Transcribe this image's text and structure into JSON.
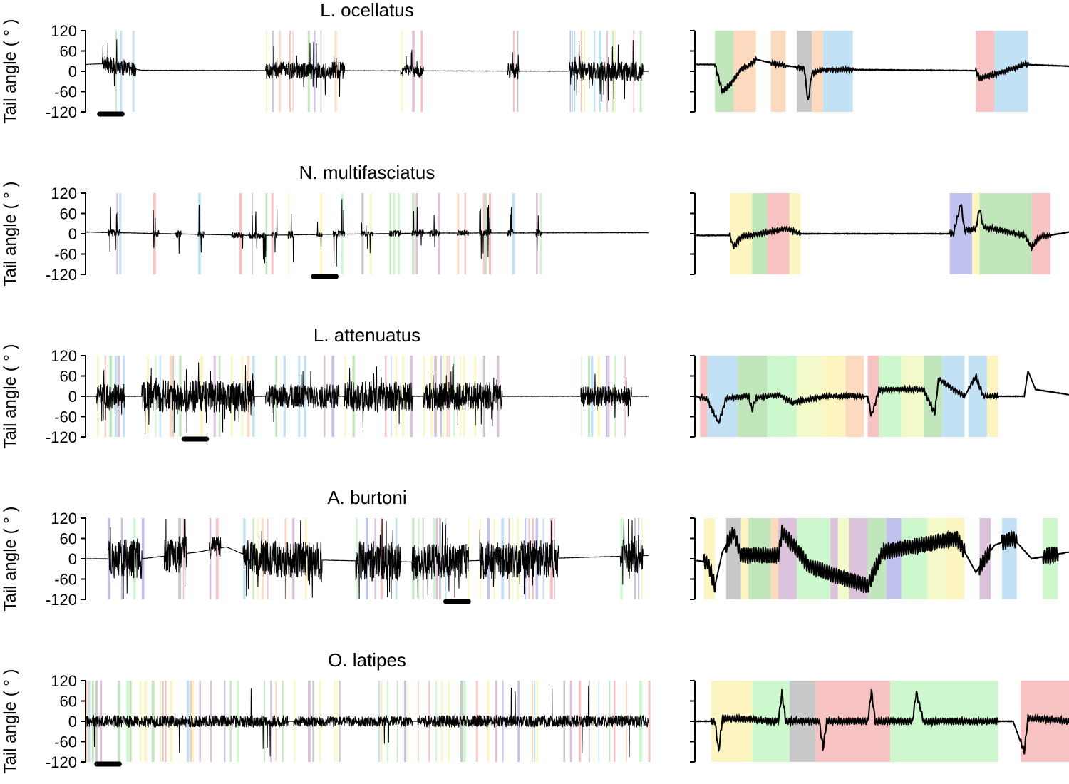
{
  "chart_data": [
    {
      "type": "line",
      "title": "L. ocellatus",
      "ylabel": "Tail angle ( ° )",
      "ylim": [
        -120,
        120
      ],
      "yticks": [
        120,
        60,
        0,
        -60,
        -120
      ],
      "ytick_labels": [
        "120",
        "60",
        "0",
        "-60",
        "-120"
      ],
      "overview": {
        "x_range": [
          0,
          100
        ],
        "pattern": "sparse",
        "baseline": [
          [
            0,
            20
          ],
          [
            3,
            22
          ],
          [
            10,
            3
          ],
          [
            100,
            0
          ]
        ],
        "bouts": [
          [
            3,
            9,
            70
          ],
          [
            32,
            46,
            75
          ],
          [
            56,
            60,
            55
          ],
          [
            75,
            77,
            70
          ],
          [
            86,
            99,
            80
          ]
        ],
        "scale_bar": [
          2.5,
          6.5
        ],
        "zoom_at": 2.5
      },
      "zoom": {
        "x_range": [
          0,
          100
        ],
        "segments": [
          [
            5,
            10,
            "#b6e2b0"
          ],
          [
            10,
            16,
            "#fbd4b4"
          ],
          [
            20,
            24,
            "#fbd4b4"
          ],
          [
            27,
            31,
            "#bfbfbf"
          ],
          [
            31,
            34,
            "#fbd4b4"
          ],
          [
            34,
            42,
            "#b9dcf3"
          ],
          [
            75,
            80,
            "#f6b7b7"
          ],
          [
            80,
            89,
            "#b9dcf3"
          ]
        ],
        "trace": [
          [
            0,
            20
          ],
          [
            5,
            20
          ],
          [
            7,
            -60
          ],
          [
            9,
            -40
          ],
          [
            12,
            5
          ],
          [
            14,
            15
          ],
          [
            16,
            35
          ],
          [
            22,
            20
          ],
          [
            27,
            12
          ],
          [
            29,
            8
          ],
          [
            30,
            -90
          ],
          [
            31,
            -5
          ],
          [
            34,
            5
          ],
          [
            40,
            5
          ],
          [
            75,
            2
          ],
          [
            76,
            -20
          ],
          [
            80,
            -10
          ],
          [
            88,
            20
          ],
          [
            100,
            15
          ]
        ]
      }
    },
    {
      "type": "line",
      "title": "N. multifasciatus",
      "ylabel": "Tail angle ( ° )",
      "ylim": [
        -120,
        120
      ],
      "yticks": [
        120,
        60,
        0,
        -60,
        -120
      ],
      "ytick_labels": [
        "120",
        "60",
        "0",
        "-60",
        "-120"
      ],
      "overview": {
        "x_range": [
          0,
          100
        ],
        "pattern": "spikes",
        "baseline": [
          [
            0,
            5
          ],
          [
            30,
            -5
          ],
          [
            60,
            2
          ],
          [
            100,
            3
          ]
        ],
        "bouts": [
          [
            4,
            6,
            90
          ],
          [
            12,
            13,
            80
          ],
          [
            16,
            17,
            85
          ],
          [
            20,
            21,
            90
          ],
          [
            26,
            28,
            70
          ],
          [
            29,
            32,
            80
          ],
          [
            33,
            34,
            80
          ],
          [
            36,
            37,
            90
          ],
          [
            41,
            42,
            60
          ],
          [
            44,
            46,
            95
          ],
          [
            49,
            51,
            60
          ],
          [
            54,
            56,
            85
          ],
          [
            58,
            60,
            80
          ],
          [
            61,
            63,
            85
          ],
          [
            66,
            68,
            70
          ],
          [
            70,
            72,
            80
          ],
          [
            75,
            76,
            85
          ],
          [
            80,
            81,
            85
          ]
        ],
        "scale_bar": [
          40.5,
          44.5
        ],
        "zoom_at": 40.5
      },
      "zoom": {
        "x_range": [
          0,
          100
        ],
        "segments": [
          [
            9,
            15,
            "#fcf3b6"
          ],
          [
            15,
            19,
            "#b6e2b0"
          ],
          [
            19,
            25,
            "#f6b7b7"
          ],
          [
            25,
            28,
            "#fcf3b6"
          ],
          [
            68,
            74,
            "#b6b6ea"
          ],
          [
            74,
            76,
            "#fcf3b6"
          ],
          [
            76,
            90,
            "#b6e2b0"
          ],
          [
            90,
            95,
            "#f6b7b7"
          ]
        ],
        "trace": [
          [
            0,
            -5
          ],
          [
            9,
            -5
          ],
          [
            10,
            -40
          ],
          [
            12,
            -10
          ],
          [
            15,
            -5
          ],
          [
            19,
            5
          ],
          [
            24,
            15
          ],
          [
            28,
            0
          ],
          [
            69,
            0
          ],
          [
            71,
            90
          ],
          [
            72,
            10
          ],
          [
            75,
            15
          ],
          [
            76,
            75
          ],
          [
            77,
            20
          ],
          [
            88,
            -5
          ],
          [
            90,
            -40
          ],
          [
            92,
            -10
          ],
          [
            100,
            5
          ]
        ]
      }
    },
    {
      "type": "line",
      "title": "L. attenuatus",
      "ylabel": "Tail angle ( ° )",
      "ylim": [
        -120,
        120
      ],
      "yticks": [
        120,
        60,
        0,
        -60,
        -120
      ],
      "ytick_labels": [
        "120",
        "60",
        "0",
        "-60",
        "-120"
      ],
      "overview": {
        "x_range": [
          0,
          100
        ],
        "pattern": "dense",
        "baseline": [
          [
            0,
            0
          ],
          [
            100,
            0
          ]
        ],
        "bouts": [
          [
            2,
            7,
            60
          ],
          [
            10,
            30,
            80
          ],
          [
            32,
            45,
            60
          ],
          [
            46,
            58,
            75
          ],
          [
            60,
            74,
            70
          ],
          [
            88,
            97,
            50
          ]
        ],
        "scale_bar": [
          17.5,
          21.5
        ],
        "zoom_at": 17.5
      },
      "zoom": {
        "x_range": [
          0,
          100
        ],
        "segments": [
          [
            1,
            3,
            "#f6b7b7"
          ],
          [
            3,
            11,
            "#b9dcf3"
          ],
          [
            11,
            19,
            "#b6e2b0"
          ],
          [
            19,
            27,
            "#c4f7c4"
          ],
          [
            27,
            34,
            "#f2f8c1"
          ],
          [
            34,
            40,
            "#fcf3b6"
          ],
          [
            40,
            45,
            "#fbd4b4"
          ],
          [
            46,
            49,
            "#f6b7b7"
          ],
          [
            49,
            55,
            "#c4f7c4"
          ],
          [
            55,
            61,
            "#f2f8c1"
          ],
          [
            61,
            66,
            "#b6e2b0"
          ],
          [
            66,
            72,
            "#b9dcf3"
          ],
          [
            73,
            78,
            "#b9dcf3"
          ],
          [
            78,
            81,
            "#fcf3b6"
          ]
        ],
        "trace": [
          [
            0,
            0
          ],
          [
            3,
            -10
          ],
          [
            6,
            -80
          ],
          [
            8,
            -5
          ],
          [
            14,
            0
          ],
          [
            15,
            -40
          ],
          [
            16,
            -5
          ],
          [
            22,
            5
          ],
          [
            26,
            -20
          ],
          [
            34,
            0
          ],
          [
            46,
            0
          ],
          [
            47,
            -60
          ],
          [
            49,
            20
          ],
          [
            61,
            20
          ],
          [
            64,
            -50
          ],
          [
            65,
            50
          ],
          [
            72,
            0
          ],
          [
            75,
            60
          ],
          [
            77,
            0
          ],
          [
            88,
            0
          ],
          [
            89,
            75
          ],
          [
            91,
            20
          ],
          [
            100,
            5
          ]
        ]
      }
    },
    {
      "type": "line",
      "title": "A. burtoni",
      "ylabel": "Tail angle ( ° )",
      "ylim": [
        -120,
        120
      ],
      "yticks": [
        120,
        60,
        0,
        -60,
        -120
      ],
      "ytick_labels": [
        "120",
        "60",
        "0",
        "-60",
        "-120"
      ],
      "overview": {
        "x_range": [
          0,
          100
        ],
        "pattern": "dense",
        "baseline": [
          [
            0,
            0
          ],
          [
            10,
            0
          ],
          [
            20,
            20
          ],
          [
            25,
            35
          ],
          [
            30,
            0
          ],
          [
            60,
            -10
          ],
          [
            100,
            10
          ]
        ],
        "bouts": [
          [
            4,
            10,
            100
          ],
          [
            14,
            18,
            90
          ],
          [
            22,
            24,
            60
          ],
          [
            28,
            42,
            90
          ],
          [
            48,
            56,
            100
          ],
          [
            58,
            68,
            90
          ],
          [
            70,
            84,
            95
          ],
          [
            95,
            99,
            90
          ]
        ],
        "scale_bar": [
          64,
          68
        ],
        "zoom_at": 64
      },
      "zoom": {
        "x_range": [
          0,
          100
        ],
        "segments": [
          [
            2,
            5,
            "#fcf3b6"
          ],
          [
            8,
            12,
            "#bfbfbf"
          ],
          [
            12,
            14,
            "#fcf3b6"
          ],
          [
            14,
            20,
            "#b6e2b0"
          ],
          [
            20,
            22,
            "#fbd4b4"
          ],
          [
            22,
            27,
            "#d6b9d6"
          ],
          [
            27,
            36,
            "#c4f7c4"
          ],
          [
            36,
            38,
            "#d6b9d6"
          ],
          [
            38,
            41,
            "#f2f8c1"
          ],
          [
            41,
            46,
            "#d6b9d6"
          ],
          [
            46,
            51,
            "#b6e2b0"
          ],
          [
            51,
            55,
            "#b6b6ea"
          ],
          [
            55,
            62,
            "#c4f7c4"
          ],
          [
            62,
            67,
            "#f2f8c1"
          ],
          [
            67,
            72,
            "#fcf3b6"
          ],
          [
            76,
            79,
            "#d6b9d6"
          ],
          [
            82,
            86,
            "#b9dcf3"
          ],
          [
            93,
            97,
            "#c4f7c4"
          ]
        ],
        "trace": [
          [
            0,
            -5
          ],
          [
            3,
            -10
          ],
          [
            5,
            -80
          ],
          [
            7,
            20
          ],
          [
            10,
            80
          ],
          [
            12,
            10
          ],
          [
            22,
            10
          ],
          [
            23,
            80
          ],
          [
            26,
            40
          ],
          [
            30,
            -20
          ],
          [
            40,
            -60
          ],
          [
            46,
            -80
          ],
          [
            50,
            20
          ],
          [
            60,
            40
          ],
          [
            70,
            60
          ],
          [
            75,
            -40
          ],
          [
            80,
            40
          ],
          [
            85,
            60
          ],
          [
            90,
            0
          ],
          [
            100,
            20
          ]
        ]
      }
    },
    {
      "type": "line",
      "title": "O. latipes",
      "ylabel": "Tail angle ( ° )",
      "ylim": [
        -120,
        120
      ],
      "yticks": [
        120,
        60,
        0,
        -60,
        -120
      ],
      "ytick_labels": [
        "120",
        "60",
        "0",
        "-60",
        "-120"
      ],
      "overview": {
        "x_range": [
          0,
          100
        ],
        "pattern": "continuous",
        "baseline": [
          [
            0,
            0
          ],
          [
            100,
            0
          ]
        ],
        "bouts": [
          [
            0,
            36,
            40
          ],
          [
            37,
            58,
            35
          ],
          [
            59,
            100,
            40
          ]
        ],
        "scale_bar": [
          2,
          6
        ],
        "zoom_at": 2
      },
      "zoom": {
        "x_range": [
          0,
          100
        ],
        "segments": [
          [
            4,
            15,
            "#fcf3b6"
          ],
          [
            15,
            25,
            "#c4f7c4"
          ],
          [
            25,
            32,
            "#bfbfbf"
          ],
          [
            32,
            52,
            "#f6b7b7"
          ],
          [
            52,
            81,
            "#c4f7c4"
          ],
          [
            87,
            101,
            "#f6b7b7"
          ]
        ],
        "trace": [
          [
            0,
            0
          ],
          [
            5,
            0
          ],
          [
            6,
            -90
          ],
          [
            7,
            10
          ],
          [
            22,
            0
          ],
          [
            23,
            85
          ],
          [
            24,
            0
          ],
          [
            33,
            0
          ],
          [
            34,
            -80
          ],
          [
            35,
            0
          ],
          [
            46,
            0
          ],
          [
            47,
            90
          ],
          [
            48,
            0
          ],
          [
            58,
            0
          ],
          [
            59,
            85
          ],
          [
            61,
            0
          ],
          [
            85,
            0
          ],
          [
            88,
            -90
          ],
          [
            89,
            10
          ],
          [
            100,
            0
          ]
        ]
      }
    }
  ]
}
